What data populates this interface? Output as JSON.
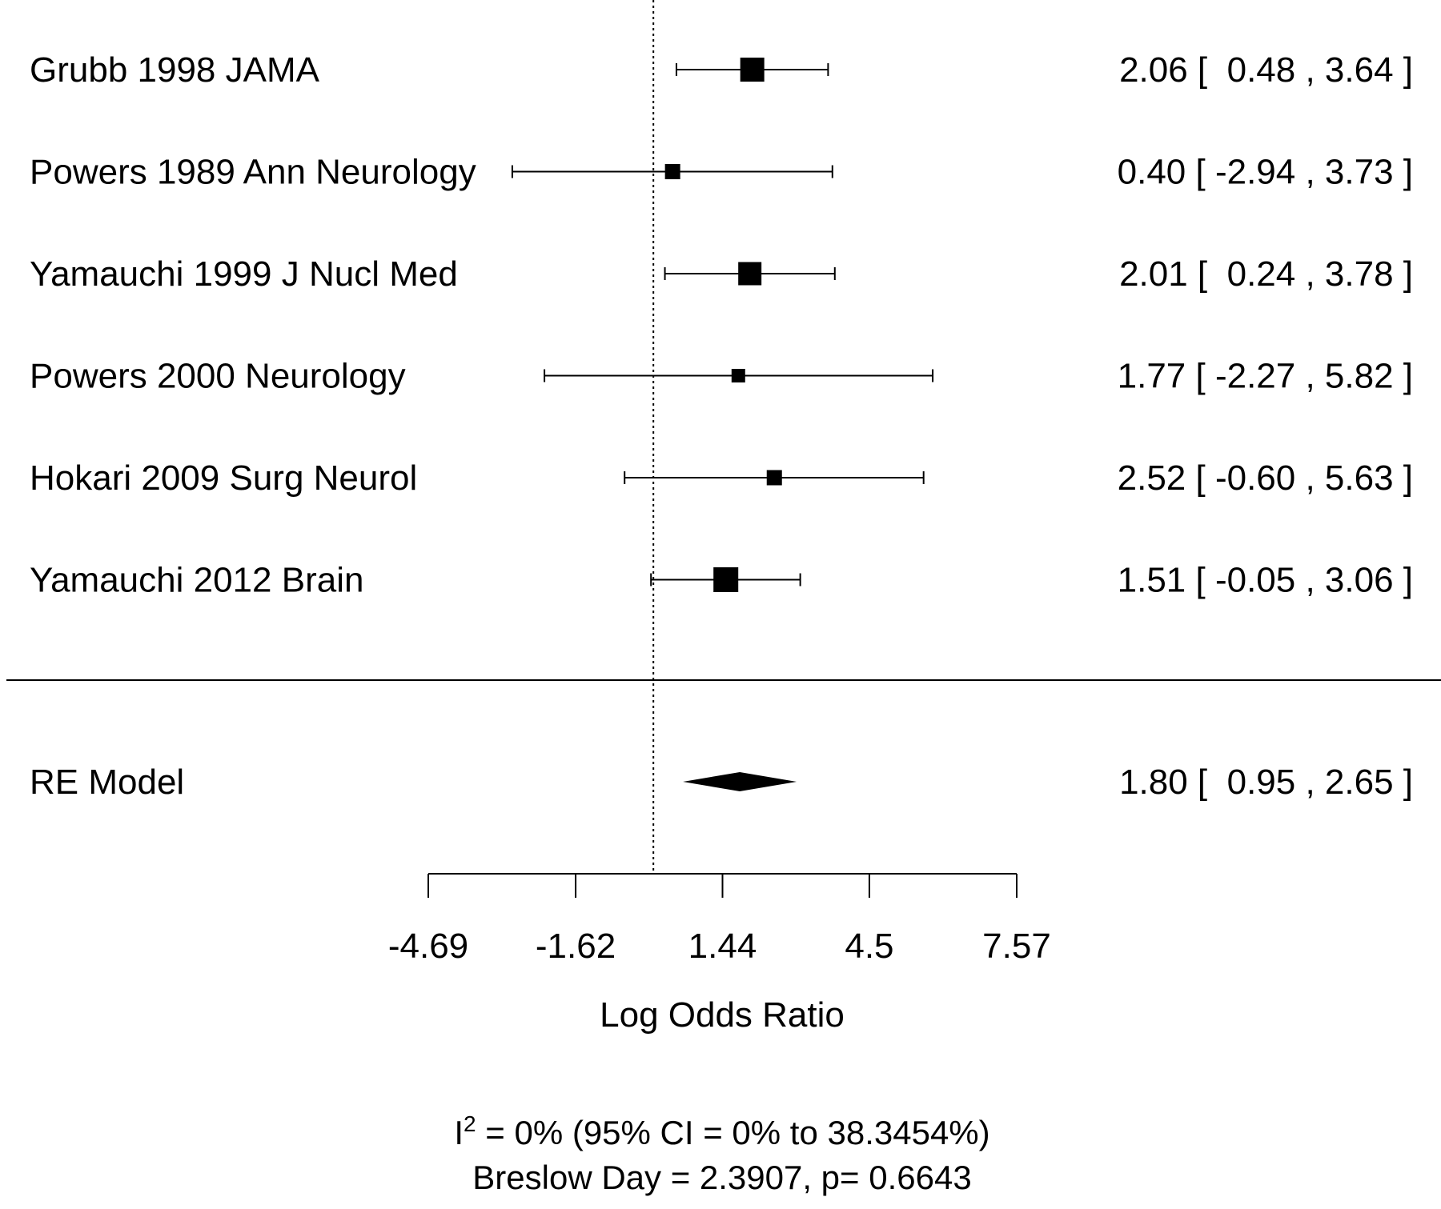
{
  "chart_data": {
    "type": "forest",
    "xlabel": "Log Odds Ratio",
    "xlim": [
      -4.69,
      7.57
    ],
    "ticks": [
      "-4.69",
      "-1.62",
      "1.44",
      "4.5",
      "7.57"
    ],
    "reference_line": 0,
    "studies": [
      {
        "label": "Grubb 1998 JAMA",
        "estimate": 2.06,
        "lower": 0.48,
        "upper": 3.64,
        "weight": 1.0,
        "ci_text": "2.06 [  0.48 , 3.64 ]"
      },
      {
        "label": "Powers 1989 Ann Neurology",
        "estimate": 0.4,
        "lower": -2.94,
        "upper": 3.73,
        "weight": 0.45,
        "ci_text": "0.40 [ -2.94 , 3.73 ]"
      },
      {
        "label": "Yamauchi 1999 J Nucl Med",
        "estimate": 2.01,
        "lower": 0.24,
        "upper": 3.78,
        "weight": 0.95,
        "ci_text": "2.01 [  0.24 , 3.78 ]"
      },
      {
        "label": "Powers 2000 Neurology",
        "estimate": 1.77,
        "lower": -2.27,
        "upper": 5.82,
        "weight": 0.35,
        "ci_text": "1.77 [ -2.27 , 5.82 ]"
      },
      {
        "label": "Hokari 2009 Surg Neurol",
        "estimate": 2.52,
        "lower": -0.6,
        "upper": 5.63,
        "weight": 0.45,
        "ci_text": "2.52 [ -0.60 , 5.63 ]"
      },
      {
        "label": "Yamauchi 2012 Brain",
        "estimate": 1.51,
        "lower": -0.05,
        "upper": 3.06,
        "weight": 1.05,
        "ci_text": "1.51 [ -0.05 , 3.06 ]"
      }
    ],
    "summary": {
      "label": "RE Model",
      "estimate": 1.8,
      "lower": 0.95,
      "upper": 2.65,
      "ci_text": "1.80 [  0.95 , 2.65 ]"
    },
    "footnote": {
      "i2_prefix": "I",
      "i2_sup": "2",
      "i2_rest": " = 0% (95% CI = 0% to 38.3454%)",
      "breslow": "Breslow Day = 2.3907, p= 0.6643"
    }
  }
}
